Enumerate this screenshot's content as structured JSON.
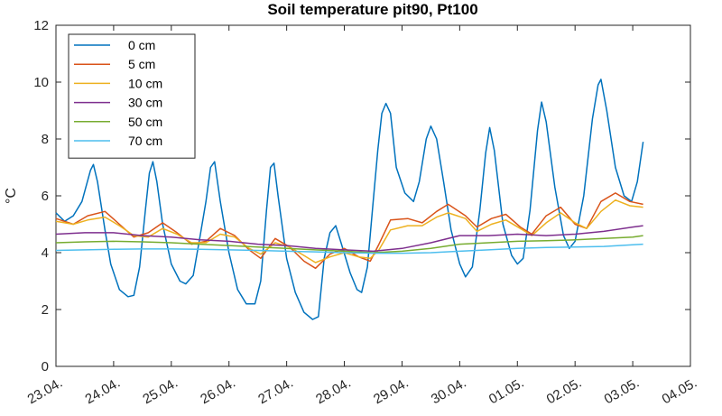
{
  "chart_data": {
    "type": "line",
    "title": "Soil temperature pit90, Pt100",
    "xlabel": "",
    "ylabel": "°C",
    "ylim": [
      0,
      12
    ],
    "yticks": [
      0,
      2,
      4,
      6,
      8,
      10,
      12
    ],
    "xlim": [
      0,
      11
    ],
    "x_tick_labels": [
      "23.04.",
      "24.04.",
      "25.04.",
      "26.04.",
      "27.04.",
      "28.04.",
      "29.04.",
      "30.04.",
      "01.05.",
      "02.05.",
      "03.05.",
      "04.05."
    ],
    "grid": false,
    "legend_position": "top-left",
    "x_unit": "days since 23.04.",
    "series": [
      {
        "name": "0 cm",
        "color": "#0072BD",
        "points": [
          [
            0,
            5.4
          ],
          [
            0.15,
            5.1
          ],
          [
            0.3,
            5.3
          ],
          [
            0.45,
            5.8
          ],
          [
            0.6,
            6.9
          ],
          [
            0.65,
            7.1
          ],
          [
            0.72,
            6.5
          ],
          [
            0.85,
            4.8
          ],
          [
            0.95,
            3.6
          ],
          [
            1.1,
            2.7
          ],
          [
            1.25,
            2.45
          ],
          [
            1.35,
            2.5
          ],
          [
            1.45,
            3.5
          ],
          [
            1.55,
            5.5
          ],
          [
            1.62,
            6.8
          ],
          [
            1.68,
            7.2
          ],
          [
            1.75,
            6.5
          ],
          [
            1.85,
            5.0
          ],
          [
            2.0,
            3.6
          ],
          [
            2.15,
            3.0
          ],
          [
            2.25,
            2.9
          ],
          [
            2.38,
            3.2
          ],
          [
            2.5,
            4.6
          ],
          [
            2.6,
            5.8
          ],
          [
            2.68,
            7.0
          ],
          [
            2.75,
            7.2
          ],
          [
            2.85,
            5.8
          ],
          [
            3.0,
            4.0
          ],
          [
            3.15,
            2.7
          ],
          [
            3.3,
            2.2
          ],
          [
            3.45,
            2.2
          ],
          [
            3.55,
            3.0
          ],
          [
            3.65,
            5.5
          ],
          [
            3.72,
            7.0
          ],
          [
            3.78,
            7.15
          ],
          [
            3.85,
            6.0
          ],
          [
            4.0,
            3.8
          ],
          [
            4.15,
            2.6
          ],
          [
            4.3,
            1.9
          ],
          [
            4.45,
            1.65
          ],
          [
            4.55,
            1.75
          ],
          [
            4.65,
            3.8
          ],
          [
            4.75,
            4.7
          ],
          [
            4.85,
            4.95
          ],
          [
            4.95,
            4.3
          ],
          [
            5.1,
            3.3
          ],
          [
            5.22,
            2.7
          ],
          [
            5.3,
            2.6
          ],
          [
            5.4,
            3.5
          ],
          [
            5.5,
            5.8
          ],
          [
            5.58,
            7.6
          ],
          [
            5.65,
            8.9
          ],
          [
            5.72,
            9.25
          ],
          [
            5.8,
            8.9
          ],
          [
            5.9,
            7.0
          ],
          [
            6.05,
            6.1
          ],
          [
            6.2,
            5.8
          ],
          [
            6.3,
            6.5
          ],
          [
            6.42,
            8.0
          ],
          [
            6.5,
            8.45
          ],
          [
            6.6,
            8.0
          ],
          [
            6.72,
            6.5
          ],
          [
            6.85,
            4.8
          ],
          [
            7.0,
            3.6
          ],
          [
            7.1,
            3.15
          ],
          [
            7.22,
            3.5
          ],
          [
            7.35,
            5.5
          ],
          [
            7.45,
            7.5
          ],
          [
            7.52,
            8.4
          ],
          [
            7.6,
            7.6
          ],
          [
            7.75,
            5.0
          ],
          [
            7.9,
            3.9
          ],
          [
            8.0,
            3.6
          ],
          [
            8.1,
            3.8
          ],
          [
            8.22,
            5.5
          ],
          [
            8.35,
            8.3
          ],
          [
            8.42,
            9.3
          ],
          [
            8.5,
            8.6
          ],
          [
            8.65,
            6.3
          ],
          [
            8.8,
            4.6
          ],
          [
            8.9,
            4.15
          ],
          [
            9.0,
            4.4
          ],
          [
            9.15,
            6.0
          ],
          [
            9.3,
            8.7
          ],
          [
            9.4,
            9.9
          ],
          [
            9.45,
            10.1
          ],
          [
            9.55,
            9.0
          ],
          [
            9.7,
            7.0
          ],
          [
            9.85,
            6.0
          ],
          [
            9.98,
            5.8
          ],
          [
            10.08,
            6.5
          ],
          [
            10.18,
            7.9
          ]
        ]
      },
      {
        "name": "5 cm",
        "color": "#D95319",
        "points": [
          [
            0,
            5.2
          ],
          [
            0.3,
            5.0
          ],
          [
            0.55,
            5.3
          ],
          [
            0.85,
            5.45
          ],
          [
            1.1,
            5.0
          ],
          [
            1.35,
            4.55
          ],
          [
            1.6,
            4.7
          ],
          [
            1.85,
            5.05
          ],
          [
            2.1,
            4.7
          ],
          [
            2.35,
            4.3
          ],
          [
            2.6,
            4.4
          ],
          [
            2.85,
            4.85
          ],
          [
            3.1,
            4.6
          ],
          [
            3.35,
            4.1
          ],
          [
            3.55,
            3.8
          ],
          [
            3.8,
            4.5
          ],
          [
            4.05,
            4.2
          ],
          [
            4.3,
            3.7
          ],
          [
            4.5,
            3.45
          ],
          [
            4.75,
            3.95
          ],
          [
            5.0,
            4.15
          ],
          [
            5.25,
            3.85
          ],
          [
            5.45,
            3.7
          ],
          [
            5.6,
            4.3
          ],
          [
            5.8,
            5.15
          ],
          [
            6.1,
            5.2
          ],
          [
            6.35,
            5.05
          ],
          [
            6.6,
            5.45
          ],
          [
            6.8,
            5.7
          ],
          [
            7.1,
            5.3
          ],
          [
            7.3,
            4.9
          ],
          [
            7.55,
            5.2
          ],
          [
            7.8,
            5.35
          ],
          [
            8.05,
            4.9
          ],
          [
            8.25,
            4.65
          ],
          [
            8.5,
            5.3
          ],
          [
            8.75,
            5.6
          ],
          [
            9.0,
            5.0
          ],
          [
            9.2,
            4.85
          ],
          [
            9.45,
            5.8
          ],
          [
            9.7,
            6.1
          ],
          [
            9.95,
            5.8
          ],
          [
            10.18,
            5.7
          ]
        ]
      },
      {
        "name": "10 cm",
        "color": "#EDB120",
        "points": [
          [
            0,
            5.1
          ],
          [
            0.3,
            5.0
          ],
          [
            0.55,
            5.15
          ],
          [
            0.85,
            5.25
          ],
          [
            1.1,
            4.95
          ],
          [
            1.35,
            4.6
          ],
          [
            1.6,
            4.55
          ],
          [
            1.85,
            4.85
          ],
          [
            2.1,
            4.65
          ],
          [
            2.35,
            4.35
          ],
          [
            2.6,
            4.35
          ],
          [
            2.85,
            4.65
          ],
          [
            3.1,
            4.55
          ],
          [
            3.35,
            4.15
          ],
          [
            3.55,
            3.95
          ],
          [
            3.8,
            4.35
          ],
          [
            4.05,
            4.2
          ],
          [
            4.3,
            3.9
          ],
          [
            4.5,
            3.65
          ],
          [
            4.75,
            3.85
          ],
          [
            5.0,
            4.0
          ],
          [
            5.25,
            3.85
          ],
          [
            5.45,
            3.8
          ],
          [
            5.6,
            4.1
          ],
          [
            5.8,
            4.8
          ],
          [
            6.1,
            4.95
          ],
          [
            6.35,
            4.95
          ],
          [
            6.6,
            5.25
          ],
          [
            6.8,
            5.4
          ],
          [
            7.1,
            5.2
          ],
          [
            7.3,
            4.75
          ],
          [
            7.55,
            5.0
          ],
          [
            7.8,
            5.15
          ],
          [
            8.05,
            4.85
          ],
          [
            8.25,
            4.6
          ],
          [
            8.5,
            5.05
          ],
          [
            8.75,
            5.4
          ],
          [
            9.0,
            5.05
          ],
          [
            9.2,
            4.85
          ],
          [
            9.45,
            5.45
          ],
          [
            9.7,
            5.85
          ],
          [
            9.95,
            5.65
          ],
          [
            10.18,
            5.6
          ]
        ]
      },
      {
        "name": "30 cm",
        "color": "#7E2F8E",
        "points": [
          [
            0,
            4.65
          ],
          [
            0.5,
            4.7
          ],
          [
            1.0,
            4.7
          ],
          [
            1.5,
            4.6
          ],
          [
            2.0,
            4.55
          ],
          [
            2.5,
            4.45
          ],
          [
            3.0,
            4.4
          ],
          [
            3.5,
            4.3
          ],
          [
            4.0,
            4.25
          ],
          [
            4.5,
            4.15
          ],
          [
            5.0,
            4.1
          ],
          [
            5.5,
            4.05
          ],
          [
            6.0,
            4.15
          ],
          [
            6.5,
            4.35
          ],
          [
            7.0,
            4.6
          ],
          [
            7.5,
            4.6
          ],
          [
            8.0,
            4.65
          ],
          [
            8.5,
            4.6
          ],
          [
            9.0,
            4.65
          ],
          [
            9.5,
            4.75
          ],
          [
            10.0,
            4.9
          ],
          [
            10.18,
            4.95
          ]
        ]
      },
      {
        "name": "50 cm",
        "color": "#77AC30",
        "points": [
          [
            0,
            4.35
          ],
          [
            0.5,
            4.38
          ],
          [
            1.0,
            4.4
          ],
          [
            1.5,
            4.38
          ],
          [
            2.0,
            4.35
          ],
          [
            2.5,
            4.3
          ],
          [
            3.0,
            4.25
          ],
          [
            3.5,
            4.2
          ],
          [
            4.0,
            4.15
          ],
          [
            4.5,
            4.1
          ],
          [
            5.0,
            4.05
          ],
          [
            5.5,
            4.0
          ],
          [
            6.0,
            4.05
          ],
          [
            6.5,
            4.15
          ],
          [
            7.0,
            4.3
          ],
          [
            7.5,
            4.35
          ],
          [
            8.0,
            4.4
          ],
          [
            8.5,
            4.42
          ],
          [
            9.0,
            4.45
          ],
          [
            9.5,
            4.5
          ],
          [
            10.0,
            4.55
          ],
          [
            10.18,
            4.6
          ]
        ]
      },
      {
        "name": "70 cm",
        "color": "#4DBEEE",
        "points": [
          [
            0,
            4.08
          ],
          [
            0.5,
            4.1
          ],
          [
            1.0,
            4.12
          ],
          [
            1.5,
            4.13
          ],
          [
            2.0,
            4.13
          ],
          [
            2.5,
            4.12
          ],
          [
            3.0,
            4.1
          ],
          [
            3.5,
            4.08
          ],
          [
            4.0,
            4.05
          ],
          [
            4.5,
            4.03
          ],
          [
            5.0,
            4.0
          ],
          [
            5.5,
            3.98
          ],
          [
            6.0,
            3.98
          ],
          [
            6.5,
            4.0
          ],
          [
            7.0,
            4.05
          ],
          [
            7.5,
            4.1
          ],
          [
            8.0,
            4.15
          ],
          [
            8.5,
            4.18
          ],
          [
            9.0,
            4.2
          ],
          [
            9.5,
            4.22
          ],
          [
            10.0,
            4.28
          ],
          [
            10.18,
            4.3
          ]
        ]
      }
    ]
  }
}
